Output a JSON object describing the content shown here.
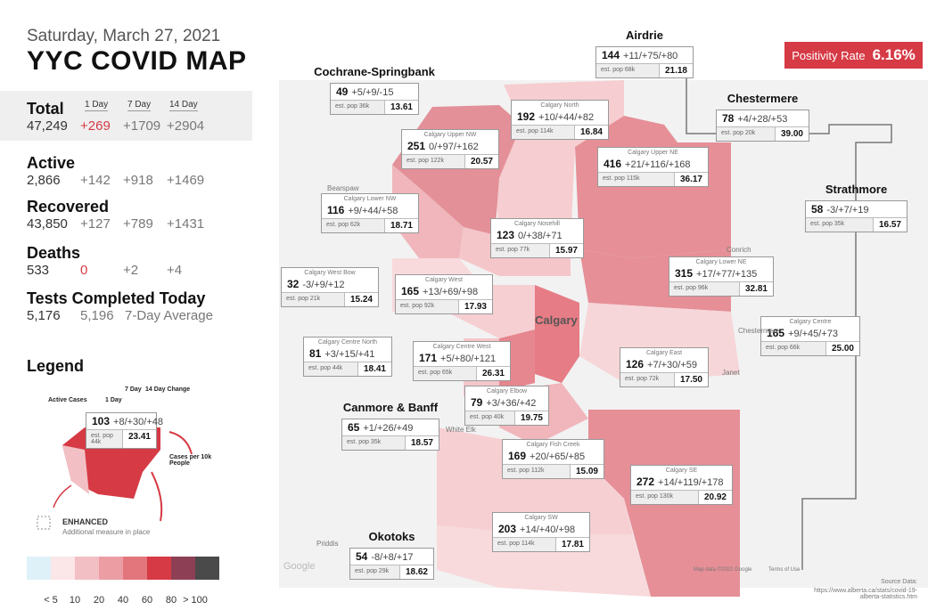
{
  "header": {
    "date": "Saturday, March 27, 2021",
    "title": "YYC COVID MAP"
  },
  "positivity": {
    "label": "Positivity Rate",
    "value": "6.16%"
  },
  "stats": {
    "period_headers": [
      "1 Day",
      "7 Day",
      "14 Day"
    ],
    "total": {
      "label": "Total",
      "value": "47,249",
      "changes": [
        "+269",
        "+1709",
        "+2904"
      ]
    },
    "active": {
      "label": "Active",
      "value": "2,866",
      "changes": [
        "+142",
        "+918",
        "+1469"
      ]
    },
    "recovered": {
      "label": "Recovered",
      "value": "43,850",
      "changes": [
        "+127",
        "+789",
        "+1431"
      ]
    },
    "deaths": {
      "label": "Deaths",
      "value": "533",
      "changes": [
        "0",
        "+2",
        "+4"
      ]
    },
    "tests": {
      "label": "Tests Completed Today",
      "value": "5,176",
      "average": "5,196",
      "average_label": "7-Day Average"
    }
  },
  "legend": {
    "title": "Legend",
    "active_cases": "Active Cases",
    "one_day": "1 Day",
    "seven_day": "7 Day",
    "fourteen_day": "14 Day Change",
    "cases_per": "Cases per 10k People",
    "sample": {
      "active": "103",
      "change": "+8/+30/+48",
      "pop": "est. pop 44k",
      "rate": "23.41"
    },
    "enhanced": "ENHANCED",
    "enhanced_note": "Additional measure in place",
    "scale_colors": [
      "#dff1f8",
      "#fbe6e8",
      "#f2c0c4",
      "#eb9da3",
      "#e3767d",
      "#d63a45",
      "#8d4055",
      "#4a4a4a"
    ],
    "scale_labels": [
      "< 5",
      "10",
      "20",
      "40",
      "60",
      "80",
      "> 100"
    ]
  },
  "towns": [
    {
      "name": "Airdrie",
      "active": "144",
      "change": "+11/+75/+80",
      "pop": "est. pop 68k",
      "rate": "21.18"
    },
    {
      "name": "Cochrane-Springbank",
      "active": "49",
      "change": "+5/+9/-15",
      "pop": "est. pop 36k",
      "rate": "13.61"
    },
    {
      "name": "Chestermere",
      "active": "78",
      "change": "+4/+28/+53",
      "pop": "est. pop 20k",
      "rate": "39.00"
    },
    {
      "name": "Strathmore",
      "active": "58",
      "change": "-3/+7/+19",
      "pop": "est. pop 35k",
      "rate": "16.57"
    },
    {
      "name": "Canmore & Banff",
      "active": "65",
      "change": "+1/+26/+49",
      "pop": "est. pop 35k",
      "rate": "18.57"
    },
    {
      "name": "Okotoks",
      "active": "54",
      "change": "-8/+8/+17",
      "pop": "est. pop 29k",
      "rate": "18.62"
    }
  ],
  "calgary_areas": [
    {
      "name": "Calgary North",
      "active": "192",
      "change": "+10/+44/+82",
      "pop": "est. pop 114k",
      "rate": "16.84"
    },
    {
      "name": "Calgary Upper NW",
      "active": "251",
      "change": "0/+97/+162",
      "pop": "est. pop 122k",
      "rate": "20.57"
    },
    {
      "name": "Calgary Upper NE",
      "active": "416",
      "change": "+21/+116/+168",
      "pop": "est. pop 115k",
      "rate": "36.17"
    },
    {
      "name": "Calgary Lower NW",
      "active": "116",
      "change": "+9/+44/+58",
      "pop": "est. pop 62k",
      "rate": "18.71"
    },
    {
      "name": "Calgary Nosehill",
      "active": "123",
      "change": "0/+38/+71",
      "pop": "est. pop 77k",
      "rate": "15.97"
    },
    {
      "name": "Calgary West Bow",
      "active": "32",
      "change": "-3/+9/+12",
      "pop": "est. pop 21k",
      "rate": "15.24"
    },
    {
      "name": "Calgary West",
      "active": "165",
      "change": "+13/+69/+98",
      "pop": "est. pop 92k",
      "rate": "17.93"
    },
    {
      "name": "Calgary Lower NE",
      "active": "315",
      "change": "+17/+77/+135",
      "pop": "est. pop 96k",
      "rate": "32.81"
    },
    {
      "name": "Calgary Centre",
      "active": "165",
      "change": "+9/+45/+73",
      "pop": "est. pop 66k",
      "rate": "25.00"
    },
    {
      "name": "Calgary Centre North",
      "active": "81",
      "change": "+3/+15/+41",
      "pop": "est. pop 44k",
      "rate": "18.41"
    },
    {
      "name": "Calgary Centre West",
      "active": "171",
      "change": "+5/+80/+121",
      "pop": "est. pop 65k",
      "rate": "26.31"
    },
    {
      "name": "Calgary East",
      "active": "126",
      "change": "+7/+30/+59",
      "pop": "est. pop 72k",
      "rate": "17.50"
    },
    {
      "name": "Calgary Elbow",
      "active": "79",
      "change": "+3/+36/+42",
      "pop": "est. pop 40k",
      "rate": "19.75"
    },
    {
      "name": "Calgary Fish Creek",
      "active": "169",
      "change": "+20/+65/+85",
      "pop": "est. pop 112k",
      "rate": "15.09"
    },
    {
      "name": "Calgary SE",
      "active": "272",
      "change": "+14/+119/+178",
      "pop": "est. pop 130k",
      "rate": "20.92"
    },
    {
      "name": "Calgary SW",
      "active": "203",
      "change": "+14/+40/+98",
      "pop": "est. pop 114k",
      "rate": "17.81"
    }
  ],
  "map_labels": {
    "city": "Calgary",
    "places": [
      "Bearspaw",
      "Conrich",
      "Chestermere",
      "Janet",
      "White Elk",
      "Priddis"
    ],
    "attribution": "Map data ©2021 Google",
    "terms": "Terms of Use",
    "google": "Google",
    "source_title": "Source Data:",
    "source_url": "https://www.alberta.ca/stats/covid-19-alberta-statistics.htm"
  }
}
